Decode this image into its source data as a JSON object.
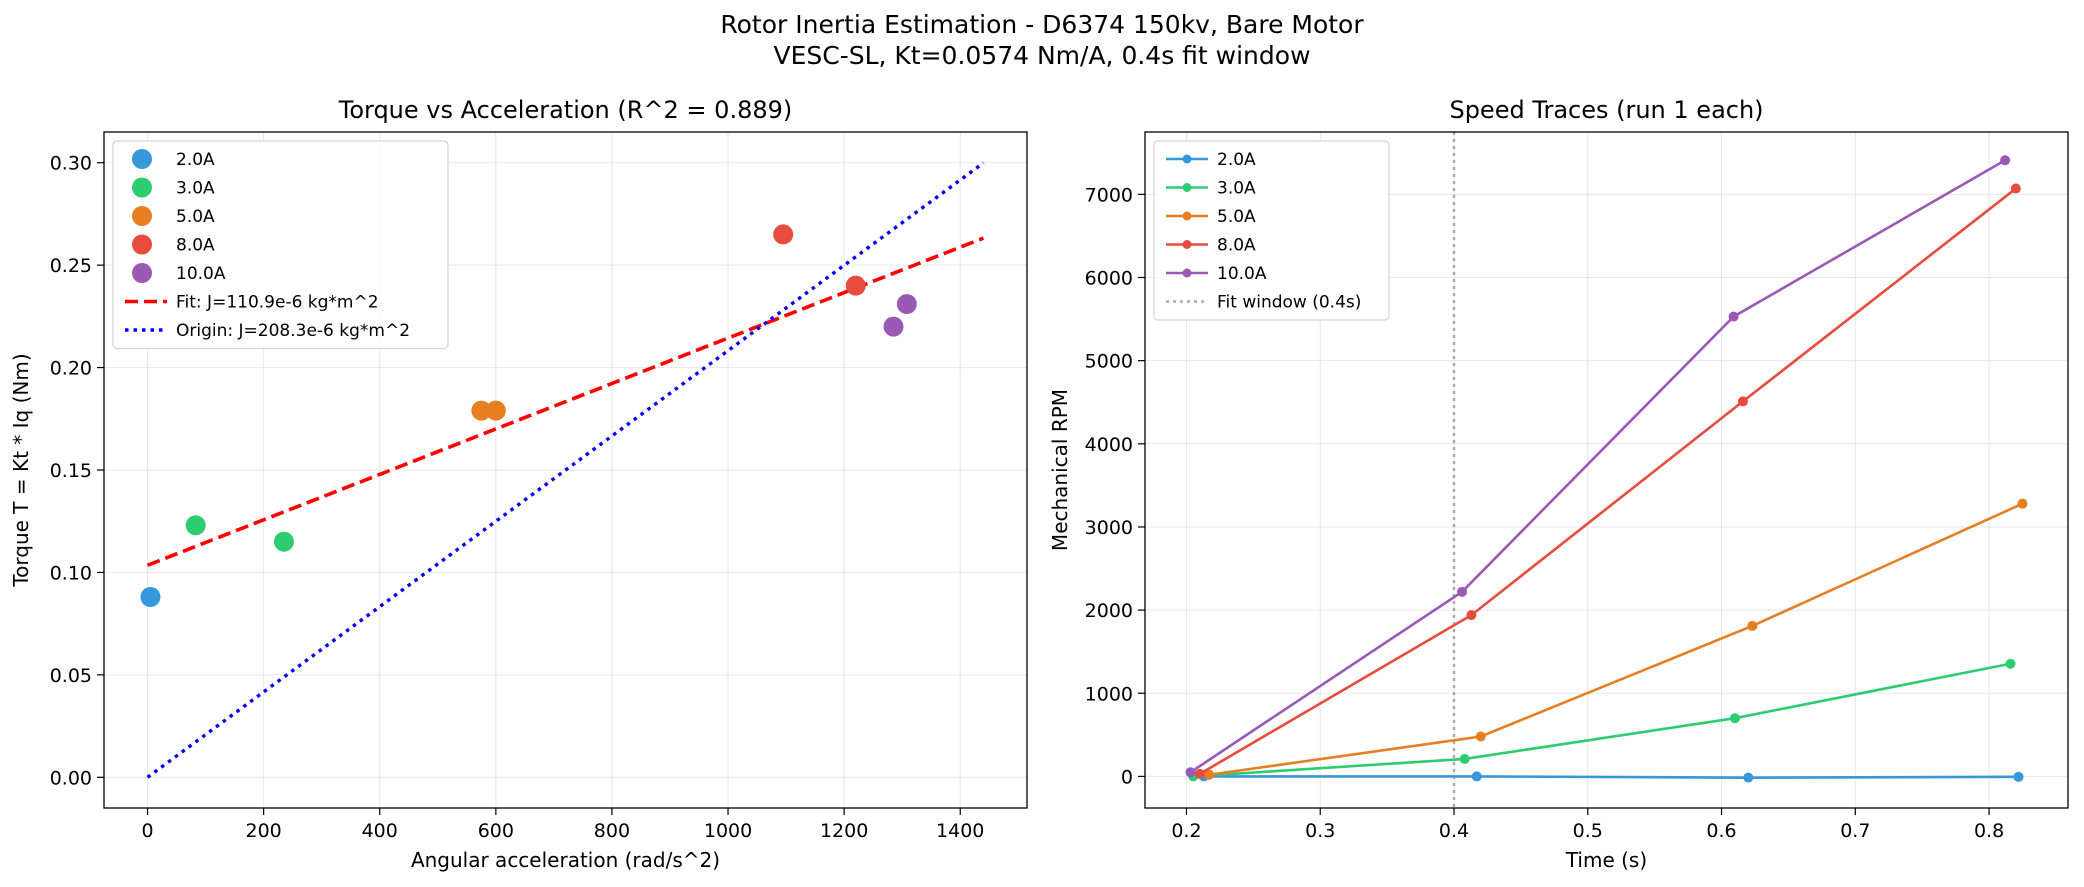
{
  "figure": {
    "title_line1": "Rotor Inertia Estimation - D6374 150kv, Bare Motor",
    "title_line2": "VESC-SL, Kt=0.0574 Nm/A, 0.4s fit window"
  },
  "chart_data": [
    {
      "type": "scatter",
      "title": "Torque vs Acceleration (R^2 = 0.889)",
      "xlabel": "Angular acceleration (rad/s^2)",
      "ylabel": "Torque T = Kt * Iq (Nm)",
      "xlim": [
        -75,
        1515
      ],
      "ylim": [
        -0.015,
        0.315
      ],
      "xticks": [
        "0",
        "200",
        "400",
        "600",
        "800",
        "1000",
        "1200",
        "1400"
      ],
      "yticks": [
        "0.00",
        "0.05",
        "0.10",
        "0.15",
        "0.20",
        "0.25",
        "0.30"
      ],
      "grid": true,
      "legend": "upper left",
      "series": [
        {
          "name": "2.0A",
          "color": "#3498db",
          "points": [
            [
              5,
              0.088
            ]
          ]
        },
        {
          "name": "3.0A",
          "color": "#2ecc71",
          "points": [
            [
              83,
              0.123
            ],
            [
              235,
              0.115
            ]
          ]
        },
        {
          "name": "5.0A",
          "color": "#e67e22",
          "points": [
            [
              575,
              0.179
            ],
            [
              600,
              0.179
            ]
          ]
        },
        {
          "name": "8.0A",
          "color": "#e74c3c",
          "points": [
            [
              1095,
              0.265
            ],
            [
              1220,
              0.24
            ]
          ]
        },
        {
          "name": "10.0A",
          "color": "#9b59b6",
          "points": [
            [
              1285,
              0.22
            ],
            [
              1308,
              0.231
            ]
          ]
        }
      ],
      "lines": [
        {
          "name": "Fit: J=110.9e-6 kg*m^2",
          "color": "#ff0000",
          "style": "dashed",
          "points": [
            [
              0,
              0.1035
            ],
            [
              1440,
              0.2632
            ]
          ]
        },
        {
          "name": "Origin: J=208.3e-6 kg*m^2",
          "color": "#0000ff",
          "style": "dotted",
          "points": [
            [
              0,
              0.0
            ],
            [
              1440,
              0.2999
            ]
          ]
        }
      ]
    },
    {
      "type": "line",
      "title": "Speed Traces (run 1 each)",
      "xlabel": "Time (s)",
      "ylabel": "Mechanical RPM",
      "xlim": [
        0.169,
        0.859
      ],
      "ylim": [
        -380,
        7750
      ],
      "xticks": [
        "0.2",
        "0.3",
        "0.4",
        "0.5",
        "0.6",
        "0.7",
        "0.8"
      ],
      "yticks": [
        "0",
        "1000",
        "2000",
        "3000",
        "4000",
        "5000",
        "6000",
        "7000"
      ],
      "grid": true,
      "legend": "upper left",
      "series": [
        {
          "name": "2.0A",
          "color": "#3498db",
          "points": [
            [
              0.213,
              0
            ],
            [
              0.417,
              0
            ],
            [
              0.62,
              -15
            ],
            [
              0.822,
              -5
            ]
          ]
        },
        {
          "name": "3.0A",
          "color": "#2ecc71",
          "points": [
            [
              0.205,
              0
            ],
            [
              0.408,
              210
            ],
            [
              0.61,
              700
            ],
            [
              0.816,
              1355
            ]
          ]
        },
        {
          "name": "5.0A",
          "color": "#e67e22",
          "points": [
            [
              0.217,
              20
            ],
            [
              0.42,
              480
            ],
            [
              0.623,
              1810
            ],
            [
              0.825,
              3280
            ]
          ]
        },
        {
          "name": "8.0A",
          "color": "#e74c3c",
          "points": [
            [
              0.21,
              30
            ],
            [
              0.413,
              1940
            ],
            [
              0.616,
              4510
            ],
            [
              0.82,
              7070
            ]
          ]
        },
        {
          "name": "10.0A",
          "color": "#9b59b6",
          "points": [
            [
              0.203,
              50
            ],
            [
              0.406,
              2220
            ],
            [
              0.609,
              5530
            ],
            [
              0.812,
              7410
            ]
          ]
        }
      ],
      "vline": {
        "name": "Fit window (0.4s)",
        "x": 0.4,
        "color": "#aaaaaa"
      }
    }
  ]
}
